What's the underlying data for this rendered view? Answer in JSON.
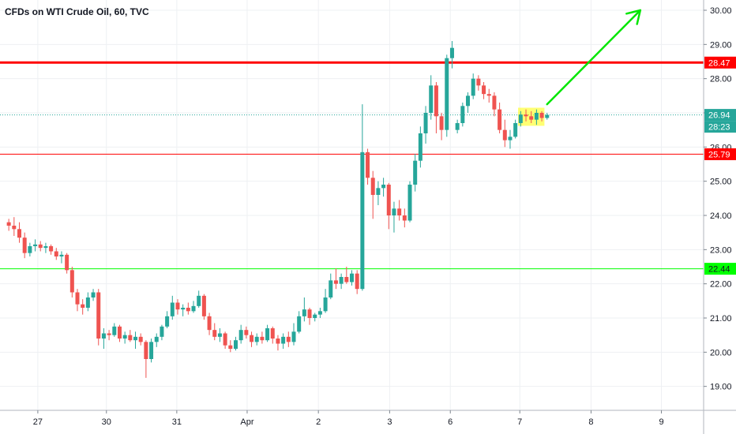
{
  "chart_data": {
    "type": "candlestick",
    "title": "CFDs on WTI Crude Oil, 60, TVC",
    "y_ticks": [
      "19.00",
      "20.00",
      "21.00",
      "22.00",
      "23.00",
      "24.00",
      "25.00",
      "26.00",
      "27.00",
      "28.00",
      "29.00",
      "30.00"
    ],
    "ylim": [
      18.3,
      30.3
    ],
    "x_ticks": [
      {
        "label": "27",
        "t": 3.3
      },
      {
        "label": "30",
        "t": 11.1
      },
      {
        "label": "31",
        "t": 19.1
      },
      {
        "label": "Apr",
        "t": 27.1
      },
      {
        "label": "2",
        "t": 35.2
      },
      {
        "label": "3",
        "t": 43.3
      },
      {
        "label": "6",
        "t": 50.2
      },
      {
        "label": "7",
        "t": 58.1
      },
      {
        "label": "8",
        "t": 66.2
      },
      {
        "label": "9",
        "t": 74.2
      }
    ],
    "xlim": [
      -1,
      79
    ],
    "horizontal_levels": [
      {
        "value": 28.47,
        "label": "28.47",
        "color": "#ff0000",
        "width": 3
      },
      {
        "value": 25.79,
        "label": "25.79",
        "color": "#ff0000",
        "width": 1
      },
      {
        "value": 22.44,
        "label": "22.44",
        "color": "#00ff00",
        "width": 1,
        "text_color": "#131722"
      }
    ],
    "last_price": {
      "value": 26.94,
      "label": "26.94",
      "countdown": "28:23",
      "color": "#26a69a"
    },
    "highlight_box": {
      "t0": 57.9,
      "t1": 60.9,
      "y0": 26.62,
      "y1": 27.15,
      "color": "#ffff00"
    },
    "arrow": {
      "t0": 61.2,
      "y0": 27.25,
      "t1": 71.8,
      "y1": 30.0,
      "color": "#00e600"
    },
    "candles": [
      [
        23.8,
        23.9,
        23.55,
        23.7
      ],
      [
        23.7,
        23.95,
        23.4,
        23.6
      ],
      [
        23.6,
        23.8,
        23.2,
        23.35
      ],
      [
        23.35,
        23.5,
        22.75,
        22.9
      ],
      [
        22.9,
        23.2,
        22.8,
        23.1
      ],
      [
        23.1,
        23.3,
        22.95,
        23.15
      ],
      [
        23.15,
        23.25,
        22.95,
        23.05
      ],
      [
        23.05,
        23.2,
        22.9,
        23.1
      ],
      [
        23.1,
        23.15,
        22.85,
        22.95
      ],
      [
        22.95,
        23.05,
        22.7,
        22.8
      ],
      [
        22.8,
        22.95,
        22.6,
        22.85
      ],
      [
        22.85,
        22.9,
        22.3,
        22.4
      ],
      [
        22.4,
        22.5,
        21.6,
        21.75
      ],
      [
        21.75,
        21.85,
        21.2,
        21.4
      ],
      [
        21.4,
        21.55,
        21.1,
        21.3
      ],
      [
        21.3,
        21.75,
        21.2,
        21.6
      ],
      [
        21.6,
        21.85,
        21.5,
        21.75
      ],
      [
        21.75,
        21.85,
        20.2,
        20.4
      ],
      [
        20.4,
        20.7,
        20.1,
        20.55
      ],
      [
        20.55,
        20.65,
        20.35,
        20.5
      ],
      [
        20.5,
        20.85,
        20.45,
        20.75
      ],
      [
        20.75,
        20.8,
        20.3,
        20.4
      ],
      [
        20.4,
        20.6,
        20.25,
        20.5
      ],
      [
        20.5,
        20.65,
        20.3,
        20.35
      ],
      [
        20.35,
        20.6,
        20.1,
        20.45
      ],
      [
        20.45,
        20.55,
        20.2,
        20.3
      ],
      [
        20.3,
        20.35,
        19.25,
        19.8
      ],
      [
        19.8,
        20.4,
        19.7,
        20.3
      ],
      [
        20.3,
        20.55,
        20.15,
        20.45
      ],
      [
        20.45,
        20.8,
        20.35,
        20.75
      ],
      [
        20.75,
        21.2,
        20.7,
        21.05
      ],
      [
        21.05,
        21.65,
        20.95,
        21.45
      ],
      [
        21.45,
        21.55,
        21.1,
        21.25
      ],
      [
        21.25,
        21.4,
        21.05,
        21.3
      ],
      [
        21.3,
        21.45,
        21.1,
        21.2
      ],
      [
        21.2,
        21.5,
        21.15,
        21.35
      ],
      [
        21.35,
        21.8,
        21.3,
        21.65
      ],
      [
        21.65,
        21.7,
        20.95,
        21.05
      ],
      [
        21.05,
        21.15,
        20.5,
        20.65
      ],
      [
        20.65,
        20.85,
        20.35,
        20.45
      ],
      [
        20.45,
        20.7,
        20.3,
        20.55
      ],
      [
        20.55,
        20.6,
        20.1,
        20.2
      ],
      [
        20.2,
        20.35,
        20.0,
        20.1
      ],
      [
        20.1,
        20.45,
        20.05,
        20.35
      ],
      [
        20.35,
        20.8,
        20.25,
        20.65
      ],
      [
        20.65,
        20.75,
        20.4,
        20.5
      ],
      [
        20.5,
        20.6,
        20.15,
        20.3
      ],
      [
        20.3,
        20.55,
        20.2,
        20.45
      ],
      [
        20.45,
        20.6,
        20.25,
        20.35
      ],
      [
        20.35,
        20.8,
        20.3,
        20.7
      ],
      [
        20.7,
        20.75,
        20.25,
        20.4
      ],
      [
        20.4,
        20.5,
        20.05,
        20.25
      ],
      [
        20.25,
        20.55,
        20.1,
        20.45
      ],
      [
        20.45,
        20.6,
        20.15,
        20.3
      ],
      [
        20.3,
        20.85,
        20.2,
        20.6
      ],
      [
        20.6,
        21.2,
        20.55,
        21.05
      ],
      [
        21.05,
        21.6,
        20.9,
        21.25
      ],
      [
        21.25,
        21.3,
        20.8,
        21.0
      ],
      [
        21.0,
        21.15,
        20.9,
        21.1
      ],
      [
        21.1,
        21.3,
        21.0,
        21.2
      ],
      [
        21.2,
        21.85,
        21.15,
        21.6
      ],
      [
        21.6,
        22.3,
        21.55,
        22.1
      ],
      [
        22.1,
        22.45,
        21.85,
        22.0
      ],
      [
        22.0,
        22.3,
        21.85,
        22.2
      ],
      [
        22.2,
        22.5,
        22.0,
        22.05
      ],
      [
        22.05,
        22.4,
        21.95,
        22.3
      ],
      [
        22.3,
        22.4,
        21.7,
        21.85
      ],
      [
        21.85,
        27.25,
        21.8,
        25.85
      ],
      [
        25.85,
        25.95,
        24.9,
        25.1
      ],
      [
        25.1,
        25.3,
        23.9,
        24.6
      ],
      [
        24.6,
        25.0,
        24.3,
        24.8
      ],
      [
        24.8,
        25.1,
        24.55,
        24.9
      ],
      [
        24.9,
        24.95,
        23.6,
        24.0
      ],
      [
        24.0,
        24.4,
        23.5,
        24.2
      ],
      [
        24.2,
        24.45,
        23.85,
        24.0
      ],
      [
        24.0,
        24.2,
        23.65,
        23.85
      ],
      [
        23.85,
        25.0,
        23.8,
        24.9
      ],
      [
        24.9,
        25.8,
        24.7,
        25.6
      ],
      [
        25.6,
        26.6,
        25.4,
        26.4
      ],
      [
        26.4,
        27.2,
        26.1,
        27.0
      ],
      [
        27.0,
        28.1,
        26.8,
        27.8
      ],
      [
        27.8,
        27.9,
        26.4,
        26.9
      ],
      [
        26.9,
        27.0,
        26.2,
        26.5
      ],
      [
        26.5,
        28.7,
        26.3,
        28.6
      ],
      [
        28.6,
        29.1,
        28.3,
        28.9
      ],
      [
        26.5,
        26.8,
        26.4,
        26.7
      ],
      [
        26.7,
        27.3,
        26.6,
        27.2
      ],
      [
        27.2,
        27.6,
        27.0,
        27.5
      ],
      [
        27.5,
        28.15,
        27.4,
        28.0
      ],
      [
        28.0,
        28.1,
        27.65,
        27.8
      ],
      [
        27.8,
        27.9,
        27.4,
        27.55
      ],
      [
        27.55,
        27.7,
        27.3,
        27.5
      ],
      [
        27.5,
        27.6,
        26.9,
        27.1
      ],
      [
        27.1,
        27.3,
        26.4,
        26.5
      ],
      [
        26.5,
        26.8,
        26.0,
        26.2
      ],
      [
        26.2,
        26.5,
        25.95,
        26.3
      ],
      [
        26.3,
        26.8,
        26.25,
        26.7
      ],
      [
        26.7,
        27.05,
        26.6,
        26.95
      ],
      [
        26.95,
        27.1,
        26.75,
        26.9
      ],
      [
        26.9,
        27.05,
        26.7,
        26.8
      ],
      [
        26.8,
        27.1,
        26.65,
        27.0
      ],
      [
        27.0,
        27.05,
        26.75,
        26.85
      ],
      [
        26.85,
        27.0,
        26.8,
        26.94
      ]
    ]
  }
}
